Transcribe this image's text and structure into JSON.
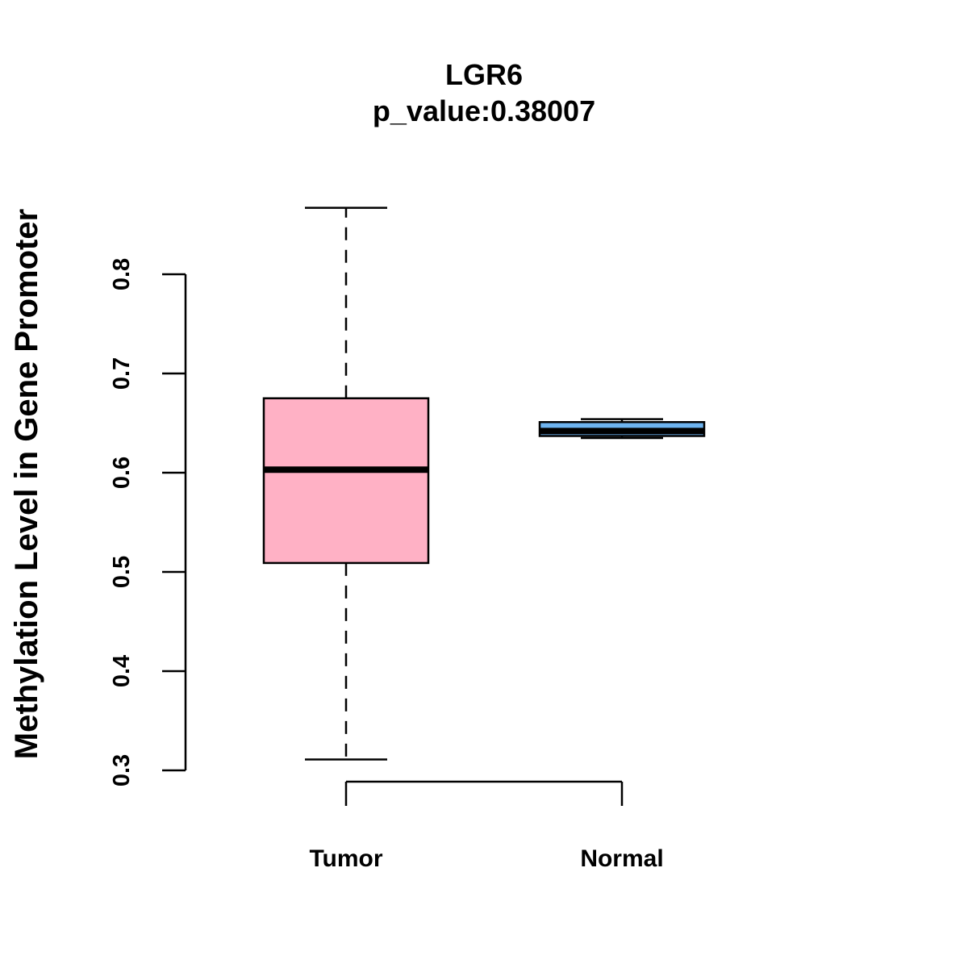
{
  "chart_data": {
    "type": "box",
    "title": "LGR6",
    "subtitle": "p_value:0.38007",
    "ylabel": "Methylation Level in Gene Promoter",
    "xlabel": "",
    "ylim": [
      0.3,
      0.8
    ],
    "yticks": [
      0.3,
      0.4,
      0.5,
      0.6,
      0.7,
      0.8
    ],
    "ytick_labels": [
      "0.3",
      "0.4",
      "0.5",
      "0.6",
      "0.7",
      "0.8"
    ],
    "categories": [
      "Tumor",
      "Normal"
    ],
    "groups": [
      {
        "name": "Tumor",
        "min": 0.311,
        "q1": 0.509,
        "median": 0.603,
        "q3": 0.675,
        "max": 0.867,
        "color": "#FFB1C5"
      },
      {
        "name": "Normal",
        "min": 0.635,
        "q1": 0.637,
        "median": 0.642,
        "q3": 0.651,
        "max": 0.654,
        "color": "#6EB4F0"
      }
    ]
  }
}
